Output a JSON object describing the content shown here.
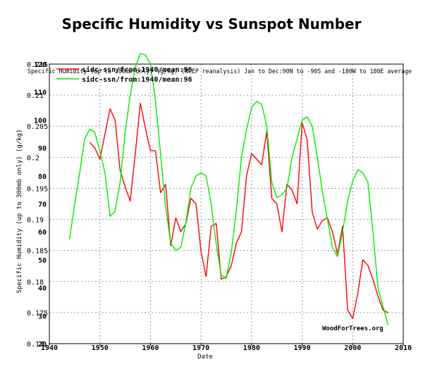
{
  "page": {
    "title": "Specific Humidity vs Sunspot Number"
  },
  "chart_data": {
    "type": "line",
    "title": "Specific Humidity vs Sunspot Number",
    "xlabel": "Date",
    "ylabel_left": "Specific Humidity (up to 300mb only) (g/kg)",
    "header_text": "Specific Humidity (up to 300mb only) (g/kg) (NCEP reanalysis) Jan to Dec:90N to -90S and -180W to 180E average",
    "watermark": "WoodForTrees.org",
    "x_range": [
      1940,
      2010
    ],
    "x_ticks": [
      1940,
      1950,
      1960,
      1970,
      1980,
      1990,
      2000,
      2010
    ],
    "y_left_range": [
      0.17,
      0.215
    ],
    "y_left_ticks": [
      "0.17",
      "0.175",
      "0.18",
      "0.185",
      "0.19",
      "0.195",
      "0.2",
      "0.205",
      "0.21",
      "0.215"
    ],
    "y_left_tick_values": [
      0.17,
      0.175,
      0.18,
      0.185,
      0.19,
      0.195,
      0.2,
      0.205,
      0.21,
      0.215
    ],
    "y_right_range": [
      20,
      120
    ],
    "y_right_ticks": [
      "20",
      "30",
      "40",
      "50",
      "60",
      "70",
      "80",
      "90",
      "100",
      "110",
      "120"
    ],
    "y_right_tick_values": [
      20,
      30,
      40,
      50,
      60,
      70,
      80,
      90,
      100,
      110,
      120
    ],
    "grid": true,
    "legend_position": "top-left",
    "series": [
      {
        "name": "sidc-ssn/from:1940/mean:96",
        "color": "#ff0000",
        "axis": "right",
        "points": [
          [
            1948,
            92
          ],
          [
            1949,
            90
          ],
          [
            1950,
            86
          ],
          [
            1951,
            95
          ],
          [
            1952,
            104
          ],
          [
            1953,
            100
          ],
          [
            1954,
            82
          ],
          [
            1955,
            76
          ],
          [
            1956,
            71
          ],
          [
            1957,
            88
          ],
          [
            1958,
            106
          ],
          [
            1959,
            97
          ],
          [
            1960,
            89
          ],
          [
            1961,
            89
          ],
          [
            1962,
            74
          ],
          [
            1963,
            77
          ],
          [
            1964,
            55
          ],
          [
            1965,
            65
          ],
          [
            1966,
            60
          ],
          [
            1967,
            63
          ],
          [
            1968,
            72
          ],
          [
            1969,
            70
          ],
          [
            1970,
            53
          ],
          [
            1971,
            44
          ],
          [
            1972,
            62
          ],
          [
            1973,
            63
          ],
          [
            1974,
            43
          ],
          [
            1975,
            44
          ],
          [
            1976,
            48
          ],
          [
            1977,
            56
          ],
          [
            1978,
            60
          ],
          [
            1979,
            80
          ],
          [
            1980,
            88
          ],
          [
            1981,
            86
          ],
          [
            1982,
            84
          ],
          [
            1983,
            96
          ],
          [
            1984,
            72
          ],
          [
            1985,
            70
          ],
          [
            1986,
            60
          ],
          [
            1987,
            77
          ],
          [
            1988,
            75
          ],
          [
            1989,
            70
          ],
          [
            1990,
            99
          ],
          [
            1991,
            93
          ],
          [
            1992,
            67
          ],
          [
            1993,
            61
          ],
          [
            1994,
            64
          ],
          [
            1995,
            65
          ],
          [
            1996,
            60
          ],
          [
            1997,
            52
          ],
          [
            1998,
            62
          ],
          [
            1999,
            32
          ],
          [
            2000,
            29
          ],
          [
            2001,
            38
          ],
          [
            2002,
            50
          ],
          [
            2003,
            48
          ],
          [
            2004,
            43
          ],
          [
            2005,
            37
          ],
          [
            2006,
            32
          ],
          [
            2007,
            31
          ]
        ]
      },
      {
        "name": "sidc-ssn/from:1940/mean:96",
        "color": "#00ee00",
        "axis": "left",
        "points": [
          [
            1944,
            0.1868
          ],
          [
            1945,
            0.1925
          ],
          [
            1946,
            0.1975
          ],
          [
            1947,
            0.203
          ],
          [
            1948,
            0.2045
          ],
          [
            1949,
            0.204
          ],
          [
            1950,
            0.201
          ],
          [
            1951,
            0.1975
          ],
          [
            1952,
            0.1905
          ],
          [
            1953,
            0.1913
          ],
          [
            1954,
            0.196
          ],
          [
            1955,
            0.204
          ],
          [
            1956,
            0.21
          ],
          [
            1957,
            0.2145
          ],
          [
            1958,
            0.2167
          ],
          [
            1959,
            0.2165
          ],
          [
            1960,
            0.215
          ],
          [
            1961,
            0.209
          ],
          [
            1962,
            0.2005
          ],
          [
            1963,
            0.192
          ],
          [
            1964,
            0.1862
          ],
          [
            1965,
            0.185
          ],
          [
            1966,
            0.1855
          ],
          [
            1967,
            0.1895
          ],
          [
            1968,
            0.195
          ],
          [
            1969,
            0.197
          ],
          [
            1970,
            0.1975
          ],
          [
            1971,
            0.197
          ],
          [
            1972,
            0.1925
          ],
          [
            1973,
            0.186
          ],
          [
            1974,
            0.181
          ],
          [
            1975,
            0.1805
          ],
          [
            1976,
            0.1848
          ],
          [
            1977,
            0.1915
          ],
          [
            1978,
            0.2
          ],
          [
            1979,
            0.2045
          ],
          [
            1980,
            0.208
          ],
          [
            1981,
            0.209
          ],
          [
            1982,
            0.2085
          ],
          [
            1983,
            0.205
          ],
          [
            1984,
            0.196
          ],
          [
            1985,
            0.1935
          ],
          [
            1986,
            0.194
          ],
          [
            1987,
            0.195
          ],
          [
            1988,
            0.2
          ],
          [
            1989,
            0.203
          ],
          [
            1990,
            0.206
          ],
          [
            1991,
            0.2065
          ],
          [
            1992,
            0.205
          ],
          [
            1993,
            0.2
          ],
          [
            1994,
            0.1945
          ],
          [
            1995,
            0.19
          ],
          [
            1996,
            0.1855
          ],
          [
            1997,
            0.184
          ],
          [
            1998,
            0.188
          ],
          [
            1999,
            0.193
          ],
          [
            2000,
            0.1962
          ],
          [
            2001,
            0.198
          ],
          [
            2002,
            0.1975
          ],
          [
            2003,
            0.196
          ],
          [
            2004,
            0.188
          ],
          [
            2005,
            0.179
          ],
          [
            2006,
            0.176
          ],
          [
            2007,
            0.173
          ]
        ]
      }
    ]
  }
}
